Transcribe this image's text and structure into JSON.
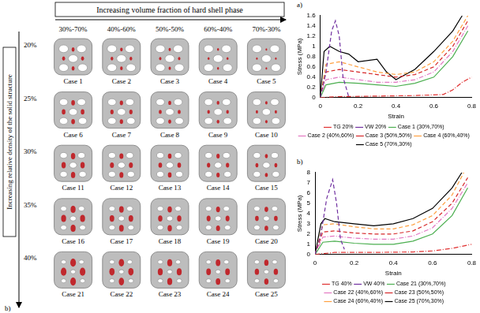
{
  "grid_panel": {
    "label": "b)",
    "column_title": "Increasing volume fraction of hard shell phase",
    "row_title": "Increasing relative density of the solid structure",
    "columns": [
      "30%-70%",
      "40%-60%",
      "50%-50%",
      "60%-40%",
      "70%-30%"
    ],
    "rows": [
      "20%",
      "25%",
      "30%",
      "35%",
      "40%"
    ],
    "cases": [
      [
        "Case 1",
        "Case 2",
        "Case 3",
        "Case 4",
        "Case 5"
      ],
      [
        "Case 6",
        "Case 7",
        "Case 8",
        "Case 9",
        "Case 10"
      ],
      [
        "Case 11",
        "Case 12",
        "Case 13",
        "Case 14",
        "Case 15"
      ],
      [
        "Case 16",
        "Case 17",
        "Case 18",
        "Case 19",
        "Case 20"
      ],
      [
        "Case 21",
        "Case 22",
        "Case 23",
        "Case 24",
        "Case 25"
      ]
    ]
  },
  "chart_data": [
    {
      "type": "line",
      "panel_label": "a)",
      "x_label": "Strain",
      "y_label": "Stress (MPa)",
      "xlim": [
        0,
        0.8
      ],
      "xticks": [
        0,
        0.2,
        0.4,
        0.6,
        0.8
      ],
      "ylim": [
        0,
        1.6
      ],
      "yticks": [
        0,
        0.2,
        0.4,
        0.6,
        0.8,
        1,
        1.2,
        1.4,
        1.6
      ],
      "grid": false,
      "legend": "bottom",
      "series": [
        {
          "name": "TG 20%",
          "color": "#e03030",
          "line_style": "dashdot",
          "x": [
            0,
            0.1,
            0.3,
            0.5,
            0.65,
            0.7,
            0.75,
            0.8
          ],
          "values": [
            0,
            0.02,
            0.03,
            0.04,
            0.06,
            0.15,
            0.3,
            0.4
          ]
        },
        {
          "name": "VW 20%",
          "color": "#7030a0",
          "line_style": "dashed",
          "x": [
            0,
            0.03,
            0.06,
            0.08,
            0.1,
            0.12,
            0.15
          ],
          "values": [
            0,
            0.5,
            1.3,
            1.5,
            1.2,
            0.4,
            0.02
          ]
        },
        {
          "name": "Case 1 (30%,70%)",
          "color": "#4caf50",
          "line_style": "solid",
          "x": [
            0,
            0.03,
            0.1,
            0.2,
            0.3,
            0.4,
            0.5,
            0.6,
            0.7,
            0.78
          ],
          "values": [
            0,
            0.25,
            0.3,
            0.28,
            0.25,
            0.22,
            0.28,
            0.4,
            0.8,
            1.3
          ]
        },
        {
          "name": "Case 2 (40%,60%)",
          "color": "#e377c2",
          "line_style": "dashdot",
          "x": [
            0,
            0.03,
            0.1,
            0.2,
            0.3,
            0.4,
            0.5,
            0.6,
            0.7,
            0.78
          ],
          "values": [
            0,
            0.35,
            0.4,
            0.35,
            0.3,
            0.3,
            0.35,
            0.5,
            0.9,
            1.4
          ]
        },
        {
          "name": "Case 3 (50%,50%)",
          "color": "#d62728",
          "line_style": "dashed",
          "x": [
            0,
            0.03,
            0.1,
            0.2,
            0.3,
            0.4,
            0.5,
            0.6,
            0.7,
            0.78
          ],
          "values": [
            0,
            0.5,
            0.55,
            0.5,
            0.45,
            0.4,
            0.45,
            0.6,
            1,
            1.5
          ]
        },
        {
          "name": "Case 4 (60%,40%)",
          "color": "#ffa040",
          "line_style": "dashed",
          "x": [
            0,
            0.03,
            0.1,
            0.2,
            0.3,
            0.4,
            0.5,
            0.6,
            0.7,
            0.78
          ],
          "values": [
            0,
            0.65,
            0.7,
            0.6,
            0.5,
            0.45,
            0.5,
            0.7,
            1.1,
            1.6
          ]
        },
        {
          "name": "Case 5 (70%,30%)",
          "color": "#000000",
          "line_style": "solid",
          "x": [
            0,
            0.02,
            0.05,
            0.1,
            0.15,
            0.2,
            0.3,
            0.35,
            0.4,
            0.5,
            0.6,
            0.7,
            0.75
          ],
          "values": [
            0,
            0.9,
            1,
            0.9,
            0.85,
            0.7,
            0.75,
            0.5,
            0.35,
            0.55,
            0.9,
            1.3,
            1.6
          ]
        }
      ]
    },
    {
      "type": "line",
      "panel_label": "b)",
      "x_label": "Strain",
      "y_label": "Stress (MPa)",
      "xlim": [
        0,
        0.8
      ],
      "xticks": [
        0,
        0.2,
        0.4,
        0.6,
        0.8
      ],
      "ylim": [
        0,
        8
      ],
      "yticks": [
        0,
        1,
        2,
        3,
        4,
        5,
        6,
        7,
        8
      ],
      "grid": false,
      "legend": "bottom",
      "series": [
        {
          "name": "TG 40%",
          "color": "#e03030",
          "line_style": "dashdot",
          "x": [
            0,
            0.1,
            0.3,
            0.5,
            0.6,
            0.7,
            0.8
          ],
          "values": [
            0,
            0.2,
            0.2,
            0.25,
            0.35,
            0.6,
            1
          ]
        },
        {
          "name": "VW 40%",
          "color": "#7030a0",
          "line_style": "dashed",
          "x": [
            0,
            0.03,
            0.06,
            0.09,
            0.11,
            0.13,
            0.15
          ],
          "values": [
            0,
            2,
            5.5,
            7.3,
            5,
            1.5,
            0.5
          ]
        },
        {
          "name": "Case 21 (30%,70%)",
          "color": "#4caf50",
          "line_style": "solid",
          "x": [
            0,
            0.04,
            0.1,
            0.2,
            0.3,
            0.4,
            0.5,
            0.6,
            0.7,
            0.78
          ],
          "values": [
            0,
            1.2,
            1.3,
            1.1,
            1,
            1,
            1.3,
            2,
            3.8,
            6.5
          ]
        },
        {
          "name": "Case 22 (40%,60%)",
          "color": "#e377c2",
          "line_style": "dashdot",
          "x": [
            0,
            0.04,
            0.1,
            0.2,
            0.3,
            0.4,
            0.5,
            0.6,
            0.7,
            0.78
          ],
          "values": [
            0,
            1.7,
            1.8,
            1.6,
            1.5,
            1.5,
            1.8,
            2.6,
            4.5,
            7
          ]
        },
        {
          "name": "Case 23 (50%,50%)",
          "color": "#d62728",
          "line_style": "dashed",
          "x": [
            0,
            0.04,
            0.1,
            0.2,
            0.3,
            0.4,
            0.5,
            0.6,
            0.7,
            0.78
          ],
          "values": [
            0,
            2.2,
            2.3,
            2.1,
            2,
            2,
            2.3,
            3.2,
            5,
            7.5
          ]
        },
        {
          "name": "Case 24 (60%,40%)",
          "color": "#ffa040",
          "line_style": "dashed",
          "x": [
            0,
            0.04,
            0.1,
            0.2,
            0.3,
            0.4,
            0.5,
            0.6,
            0.7,
            0.76
          ],
          "values": [
            0,
            2.9,
            3,
            2.7,
            2.5,
            2.5,
            2.9,
            3.8,
            5.8,
            8
          ]
        },
        {
          "name": "Case 25 (70%,30%)",
          "color": "#000000",
          "line_style": "solid",
          "x": [
            0,
            0.03,
            0.05,
            0.1,
            0.2,
            0.3,
            0.4,
            0.5,
            0.6,
            0.7,
            0.75
          ],
          "values": [
            0,
            3,
            3.5,
            3.2,
            3,
            2.8,
            3,
            3.5,
            4.5,
            6.5,
            8
          ]
        }
      ]
    }
  ]
}
